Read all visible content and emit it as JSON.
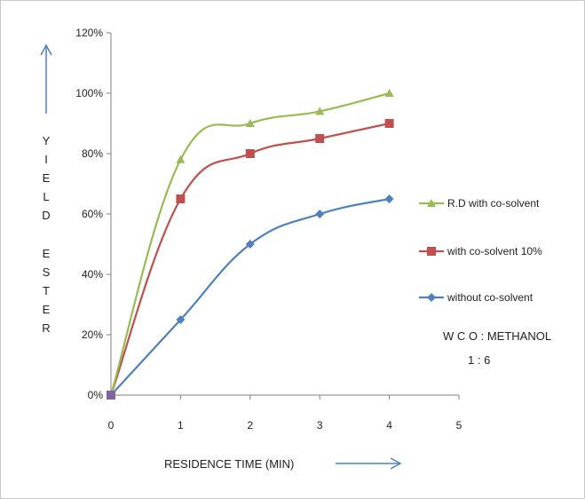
{
  "chart_data": {
    "type": "line",
    "title": "",
    "x": [
      0,
      1,
      2,
      3,
      4
    ],
    "xlim": [
      0,
      5
    ],
    "ylim": [
      0,
      120
    ],
    "x_ticks": [
      "0",
      "1",
      "2",
      "3",
      "4",
      "5"
    ],
    "y_ticks": [
      "0%",
      "20%",
      "40%",
      "60%",
      "80%",
      "100%",
      "120%"
    ],
    "xlabel": "RESIDENCE  TIME (MIN)",
    "ylabel_words": [
      "YIELD",
      "ESTER"
    ],
    "grid": false,
    "legend_position": "right",
    "series": [
      {
        "name": "R.D with co-solvent",
        "values": [
          0,
          78,
          90,
          94,
          100
        ],
        "color": "#99bb55",
        "marker": "triangle"
      },
      {
        "name": "with co-solvent 10%",
        "values": [
          0,
          65,
          80,
          85,
          90
        ],
        "color": "#c0504d",
        "marker": "square"
      },
      {
        "name": "without co-solvent",
        "values": [
          0,
          25,
          50,
          60,
          65
        ],
        "color": "#4f81bd",
        "marker": "diamond"
      }
    ],
    "annotation": [
      "W C O : METHANOL",
      "1  :  6"
    ],
    "arrow_color": "#4f81bd"
  }
}
